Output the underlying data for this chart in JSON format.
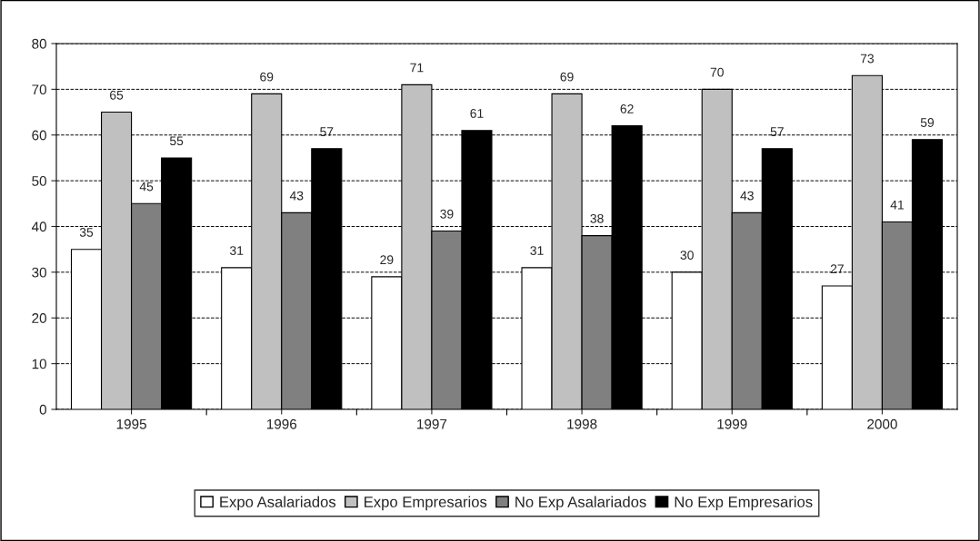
{
  "chart_data": {
    "type": "bar",
    "categories": [
      "1995",
      "1996",
      "1997",
      "1998",
      "1999",
      "2000"
    ],
    "series": [
      {
        "name": "Expo Asalariados",
        "color": "#ffffff",
        "values": [
          35,
          31,
          29,
          31,
          30,
          27
        ]
      },
      {
        "name": "Expo Empresarios",
        "color": "#c0c0c0",
        "values": [
          65,
          69,
          71,
          69,
          70,
          73
        ]
      },
      {
        "name": "No Exp Asalariados",
        "color": "#808080",
        "values": [
          45,
          43,
          39,
          38,
          43,
          41
        ]
      },
      {
        "name": "No Exp Empresarios",
        "color": "#000000",
        "values": [
          55,
          57,
          61,
          62,
          57,
          59
        ]
      }
    ],
    "ylim": [
      0,
      80
    ],
    "yticks": [
      0,
      10,
      20,
      30,
      40,
      50,
      60,
      70,
      80
    ],
    "grid": "y",
    "line_style": "dashed",
    "legend": "bottom",
    "data_labels": true
  }
}
